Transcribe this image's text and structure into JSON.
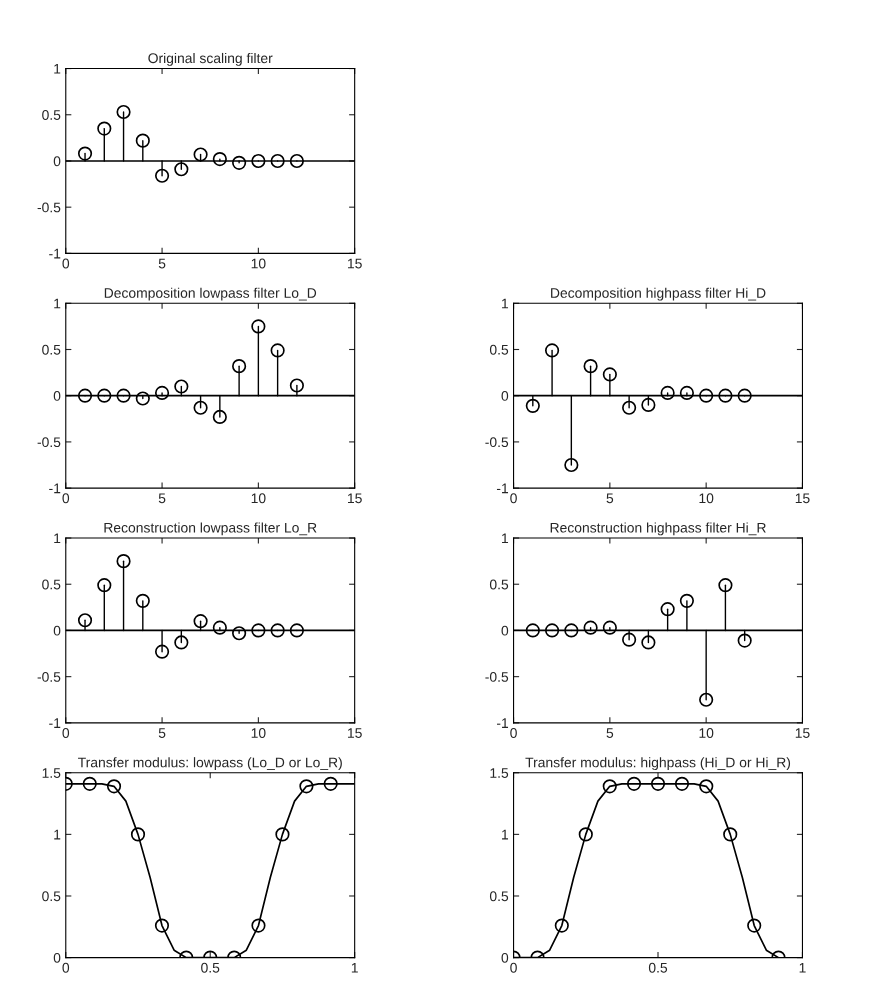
{
  "chart_data": [
    {
      "type": "lollipop",
      "title": "Original scaling filter",
      "x": [
        1,
        2,
        3,
        4,
        5,
        6,
        7,
        8,
        9,
        10,
        11,
        12
      ],
      "values": [
        0.08,
        0.35,
        0.53,
        0.22,
        -0.16,
        -0.09,
        0.07,
        0.02,
        -0.02,
        0.0,
        0.0,
        0.0
      ],
      "color": "#000000",
      "marker": "circle",
      "xlim": [
        0,
        15
      ],
      "xticks": [
        0,
        5,
        10,
        15
      ],
      "ylim": [
        -1,
        1
      ],
      "yticks": [
        -1,
        -0.5,
        0,
        0.5,
        1
      ]
    },
    {
      "type": "lollipop",
      "title": "Decomposition lowpass filter Lo_D",
      "x": [
        1,
        2,
        3,
        4,
        5,
        6,
        7,
        8,
        9,
        10,
        11,
        12
      ],
      "values": [
        0.0,
        0.0,
        0.0,
        -0.03,
        0.03,
        0.1,
        -0.13,
        -0.23,
        0.32,
        0.75,
        0.49,
        0.11
      ],
      "color": "#000000",
      "marker": "circle",
      "xlim": [
        0,
        15
      ],
      "xticks": [
        0,
        5,
        10,
        15
      ],
      "ylim": [
        -1,
        1
      ],
      "yticks": [
        -1,
        -0.5,
        0,
        0.5,
        1
      ]
    },
    {
      "type": "lollipop",
      "title": "Decomposition highpass filter Hi_D",
      "x": [
        1,
        2,
        3,
        4,
        5,
        6,
        7,
        8,
        9,
        10,
        11,
        12
      ],
      "values": [
        -0.11,
        0.49,
        -0.75,
        0.32,
        0.23,
        -0.13,
        -0.1,
        0.03,
        0.03,
        0.0,
        0.0,
        0.0
      ],
      "color": "#000000",
      "marker": "circle",
      "xlim": [
        0,
        15
      ],
      "xticks": [
        0,
        5,
        10,
        15
      ],
      "ylim": [
        -1,
        1
      ],
      "yticks": [
        -1,
        -0.5,
        0,
        0.5,
        1
      ]
    },
    {
      "type": "lollipop",
      "title": "Reconstruction lowpass filter Lo_R",
      "x": [
        1,
        2,
        3,
        4,
        5,
        6,
        7,
        8,
        9,
        10,
        11,
        12
      ],
      "values": [
        0.11,
        0.49,
        0.75,
        0.32,
        -0.23,
        -0.13,
        0.1,
        0.03,
        -0.03,
        0.0,
        0.0,
        0.0
      ],
      "color": "#000000",
      "marker": "circle",
      "xlim": [
        0,
        15
      ],
      "xticks": [
        0,
        5,
        10,
        15
      ],
      "ylim": [
        -1,
        1
      ],
      "yticks": [
        -1,
        -0.5,
        0,
        0.5,
        1
      ]
    },
    {
      "type": "lollipop",
      "title": "Reconstruction highpass filter Hi_R",
      "x": [
        1,
        2,
        3,
        4,
        5,
        6,
        7,
        8,
        9,
        10,
        11,
        12
      ],
      "values": [
        0.0,
        0.0,
        0.0,
        0.03,
        0.03,
        -0.1,
        -0.13,
        0.23,
        0.32,
        -0.75,
        0.49,
        -0.11
      ],
      "color": "#000000",
      "marker": "circle",
      "xlim": [
        0,
        15
      ],
      "xticks": [
        0,
        5,
        10,
        15
      ],
      "ylim": [
        -1,
        1
      ],
      "yticks": [
        -1,
        -0.5,
        0,
        0.5,
        1
      ]
    },
    {
      "type": "line",
      "title": "Transfer modulus: lowpass (Lo_D or Lo_R)",
      "xlim": [
        0,
        1
      ],
      "xticks": [
        0,
        0.5,
        1
      ],
      "ylim": [
        0,
        1.5
      ],
      "yticks": [
        0,
        0.5,
        1,
        1.5
      ],
      "series": [
        {
          "type": "line",
          "color": "#000000",
          "x": [
            0,
            0.042,
            0.083,
            0.125,
            0.167,
            0.208,
            0.25,
            0.292,
            0.333,
            0.375,
            0.417,
            0.458,
            0.5,
            0.542,
            0.583,
            0.625,
            0.667,
            0.708,
            0.75,
            0.792,
            0.833,
            0.875,
            0.917,
            0.958,
            1.0
          ],
          "values": [
            1.41,
            1.41,
            1.41,
            1.41,
            1.39,
            1.27,
            1.0,
            0.65,
            0.26,
            0.06,
            0.0,
            0.0,
            0.0,
            0.0,
            0.0,
            0.06,
            0.26,
            0.65,
            1.0,
            1.27,
            1.39,
            1.41,
            1.41,
            1.41,
            1.41
          ]
        },
        {
          "type": "scatter",
          "color": "#000000",
          "marker": "circle",
          "x": [
            0,
            0.083,
            0.167,
            0.25,
            0.333,
            0.417,
            0.5,
            0.583,
            0.667,
            0.75,
            0.833,
            0.917
          ],
          "values": [
            1.41,
            1.41,
            1.39,
            1.0,
            0.26,
            0.0,
            0.0,
            0.0,
            0.26,
            1.0,
            1.39,
            1.41
          ]
        }
      ]
    },
    {
      "type": "line",
      "title": "Transfer modulus: highpass (Hi_D or Hi_R)",
      "xlim": [
        0,
        1
      ],
      "xticks": [
        0,
        0.5,
        1
      ],
      "ylim": [
        0,
        1.5
      ],
      "yticks": [
        0,
        0.5,
        1,
        1.5
      ],
      "series": [
        {
          "type": "line",
          "color": "#000000",
          "x": [
            0,
            0.042,
            0.083,
            0.125,
            0.167,
            0.208,
            0.25,
            0.292,
            0.333,
            0.375,
            0.417,
            0.458,
            0.5,
            0.542,
            0.583,
            0.625,
            0.667,
            0.708,
            0.75,
            0.792,
            0.833,
            0.875,
            0.917
          ],
          "values": [
            0.0,
            0.0,
            0.0,
            0.06,
            0.26,
            0.65,
            1.0,
            1.27,
            1.39,
            1.41,
            1.41,
            1.41,
            1.41,
            1.41,
            1.41,
            1.41,
            1.39,
            1.27,
            1.0,
            0.65,
            0.26,
            0.06,
            0.0
          ]
        },
        {
          "type": "scatter",
          "color": "#000000",
          "marker": "circle",
          "x": [
            0,
            0.083,
            0.167,
            0.25,
            0.333,
            0.417,
            0.5,
            0.583,
            0.667,
            0.75,
            0.833,
            0.917
          ],
          "values": [
            0.0,
            0.0,
            0.26,
            1.0,
            1.39,
            1.41,
            1.41,
            1.41,
            1.39,
            1.0,
            0.26,
            0.0
          ]
        }
      ]
    }
  ]
}
